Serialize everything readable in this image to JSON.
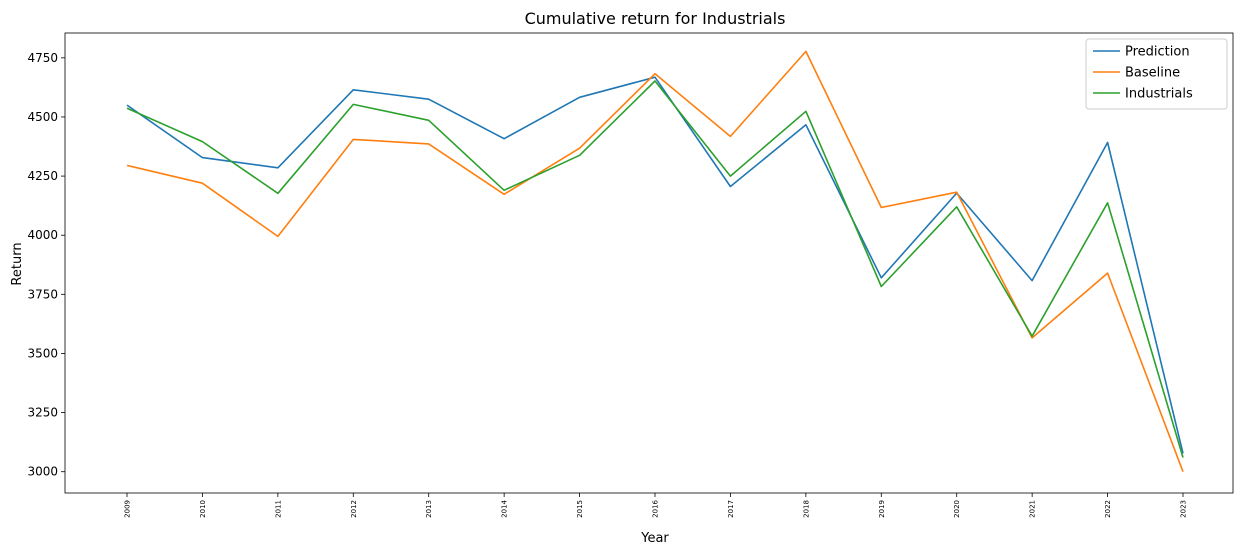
{
  "chart_data": {
    "type": "line",
    "title": "Cumulative return for Industrials",
    "xlabel": "Year",
    "ylabel": "Return",
    "x": [
      "2009",
      "2010",
      "2011",
      "2012",
      "2013",
      "2014",
      "2015",
      "2016",
      "2017",
      "2018",
      "2019",
      "2020",
      "2021",
      "2022",
      "2023"
    ],
    "ylim": [
      2910,
      4855
    ],
    "yticks": [
      3000,
      3250,
      3500,
      3750,
      4000,
      4250,
      4500,
      4750
    ],
    "ytick_labels": [
      "3000",
      "3250",
      "3500",
      "3750",
      "4000",
      "4250",
      "4500",
      "4750"
    ],
    "grid": false,
    "legend_position": "top-right",
    "series": [
      {
        "name": "Prediction",
        "color": "#1f77b4",
        "values": [
          4550,
          4328,
          4285,
          4615,
          4575,
          4408,
          4583,
          4668,
          4206,
          4467,
          3820,
          4178,
          3808,
          4392,
          3078
        ]
      },
      {
        "name": "Baseline",
        "color": "#ff7f0e",
        "values": [
          4295,
          4220,
          3995,
          4405,
          4386,
          4173,
          4368,
          4683,
          4418,
          4777,
          4117,
          4182,
          3566,
          3840,
          3000
        ]
      },
      {
        "name": "Industrials",
        "color": "#2ca02c",
        "values": [
          4537,
          4396,
          4177,
          4553,
          4486,
          4190,
          4338,
          4652,
          4250,
          4524,
          3783,
          4120,
          3573,
          4137,
          3060
        ]
      }
    ]
  }
}
